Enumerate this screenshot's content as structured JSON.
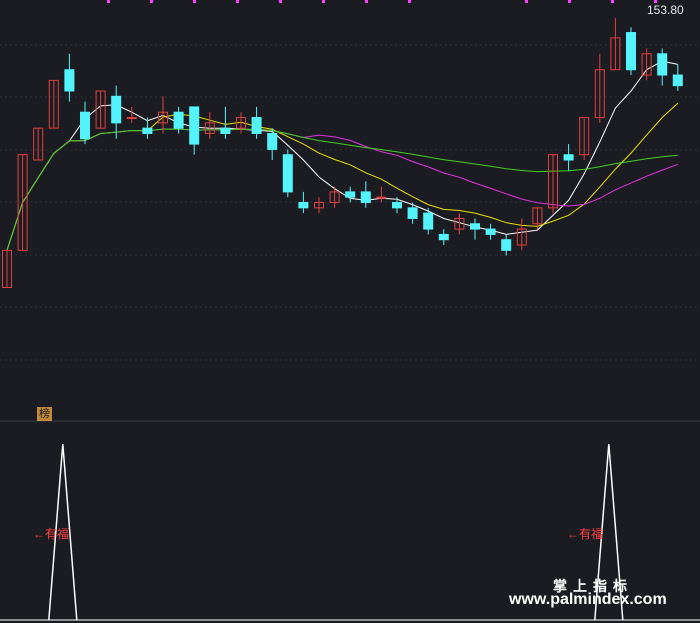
{
  "price_marker": "153.80",
  "panel_tag": "榜",
  "signal_label": "有福",
  "signal_arrow": "←",
  "watermark_cn": "掌上指标",
  "watermark_url": "www.palmindex.com",
  "colors": {
    "up": "#e04040",
    "down": "#54f4ff",
    "ma5": "#ffffff",
    "ma10": "#e8e000",
    "ma20": "#e030e0",
    "ma60": "#40d020",
    "signal": "#ffffff",
    "bg": "#1b1c22",
    "grid": "#2d2f38"
  },
  "chart_data": {
    "type": "candlestick",
    "title": "",
    "max_marker": 153.8,
    "ohlc": [
      [
        103,
        110,
        103,
        110
      ],
      [
        110,
        128,
        110,
        128
      ],
      [
        127,
        133,
        127,
        133
      ],
      [
        133,
        142,
        133,
        142
      ],
      [
        144,
        140,
        138,
        147
      ],
      [
        136,
        131,
        130,
        138
      ],
      [
        133,
        140,
        133,
        140
      ],
      [
        139,
        134,
        131,
        141
      ],
      [
        135,
        135,
        134,
        137
      ],
      [
        133,
        132,
        131,
        135
      ],
      [
        134,
        136,
        132,
        139
      ],
      [
        136,
        133,
        132,
        137
      ],
      [
        137,
        130,
        128,
        137
      ],
      [
        132,
        134,
        131,
        136
      ],
      [
        133,
        132,
        131,
        137
      ],
      [
        133,
        135,
        132,
        136
      ],
      [
        135,
        132,
        131,
        137
      ],
      [
        132,
        129,
        127,
        133
      ],
      [
        128,
        121,
        120,
        129
      ],
      [
        119,
        118,
        117,
        121
      ],
      [
        118,
        119,
        117,
        120
      ],
      [
        119,
        121,
        118,
        122
      ],
      [
        121,
        120,
        119,
        122
      ],
      [
        121,
        119,
        118,
        123
      ],
      [
        120,
        120,
        119,
        122
      ],
      [
        119,
        118,
        117,
        120
      ],
      [
        118,
        116,
        115,
        119
      ],
      [
        117,
        114,
        113,
        118
      ],
      [
        113,
        112,
        111,
        114
      ],
      [
        114,
        116,
        113,
        117
      ],
      [
        115,
        114,
        112,
        116
      ],
      [
        114,
        113,
        112,
        115
      ],
      [
        112,
        110,
        109,
        113
      ],
      [
        111,
        114,
        110,
        116
      ],
      [
        115,
        118,
        114,
        118
      ],
      [
        118,
        128,
        117,
        128
      ],
      [
        128,
        127,
        125,
        130
      ],
      [
        128,
        135,
        127,
        135
      ],
      [
        135,
        144,
        134,
        147
      ],
      [
        144,
        150,
        144,
        153.8
      ],
      [
        151,
        144,
        143,
        152
      ],
      [
        143,
        147,
        142,
        148
      ],
      [
        147,
        143,
        141,
        148
      ],
      [
        143,
        141,
        140,
        145
      ]
    ],
    "ma_lines": [
      "MA5",
      "MA10",
      "MA20",
      "MA60"
    ],
    "indicator_signals": [
      3,
      38
    ]
  }
}
